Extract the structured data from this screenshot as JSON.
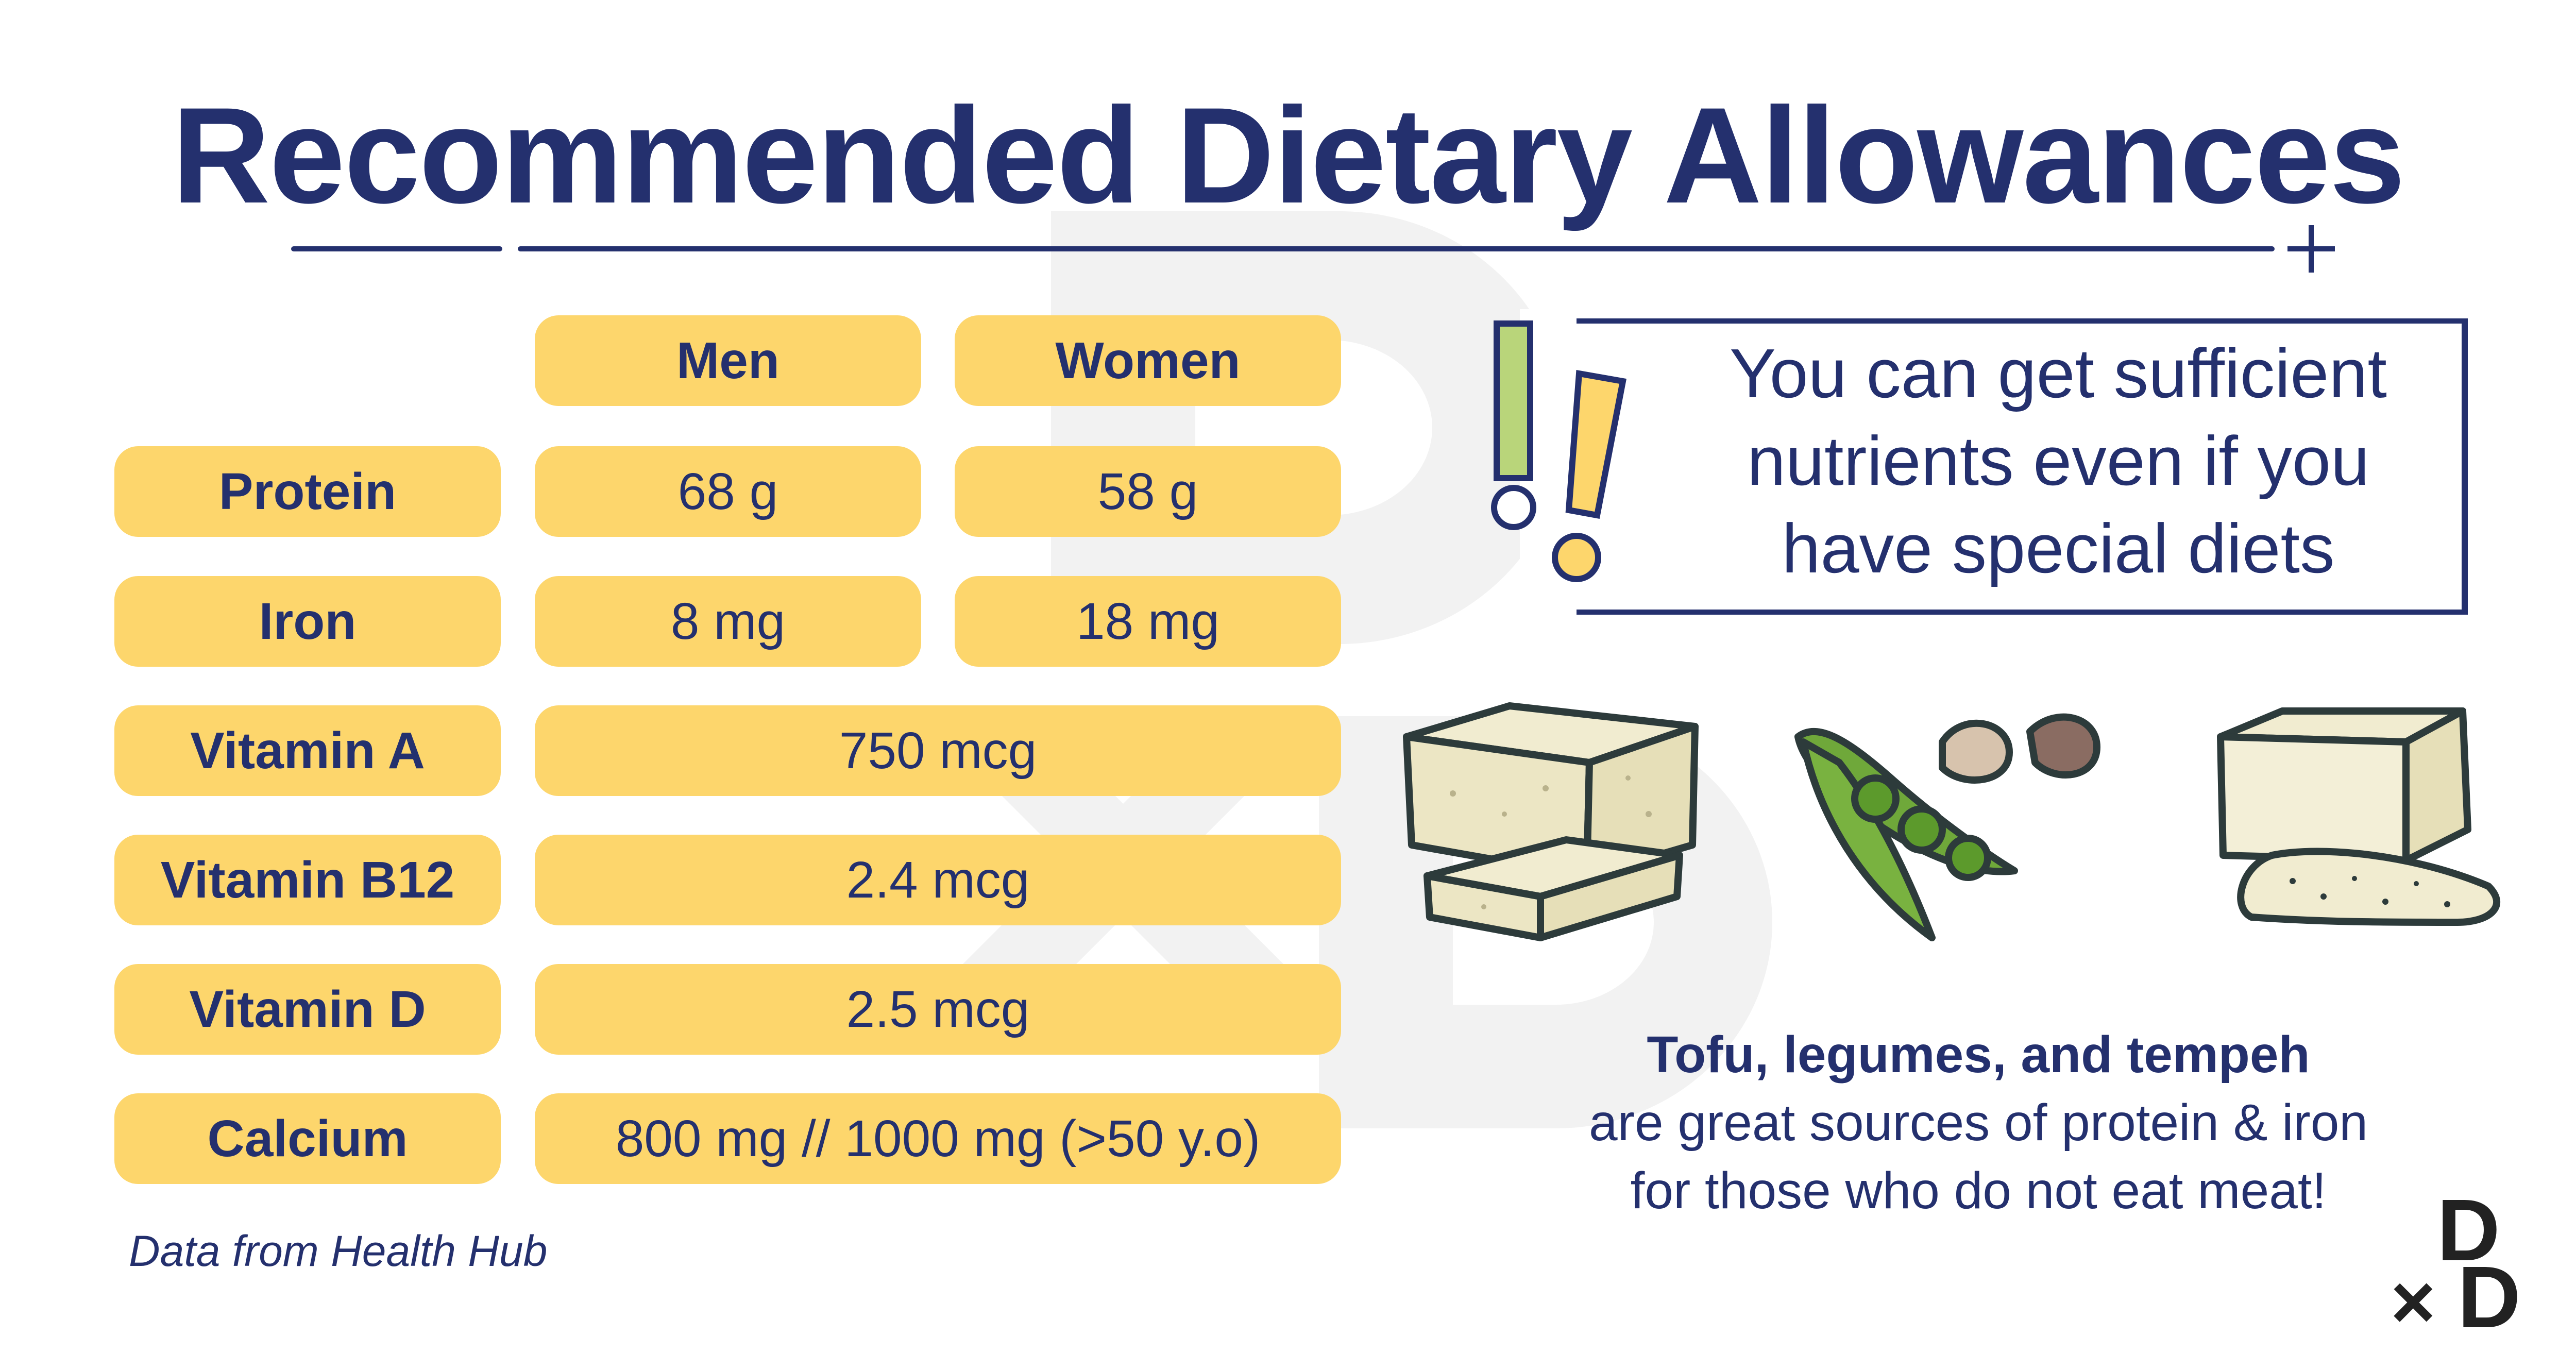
{
  "title": "Recommended Dietary Allowances",
  "table": {
    "headers": [
      "Men",
      "Women"
    ],
    "rows": [
      {
        "label": "Protein",
        "men": "68 g",
        "women": "58 g"
      },
      {
        "label": "Iron",
        "men": "8 mg",
        "women": "18 mg"
      },
      {
        "label": "Vitamin A",
        "both": "750 mcg"
      },
      {
        "label": "Vitamin B12",
        "both": "2.4 mcg"
      },
      {
        "label": "Vitamin D",
        "both": "2.5 mcg"
      },
      {
        "label": "Calcium",
        "both": "800 mg // 1000 mg (>50 y.o)"
      }
    ]
  },
  "source": "Data from Health Hub",
  "callout": {
    "lines": [
      "You can get sufficient",
      "nutrients even if you",
      "have special diets"
    ]
  },
  "caption": {
    "bold": "Tofu, legumes, and tempeh",
    "lines": [
      "are great sources of protein & iron",
      "for those who do not eat meat!"
    ]
  },
  "logo": {
    "top": "D",
    "cross": "×",
    "bottom": "D"
  },
  "colors": {
    "navy": "#24306e",
    "pill_yellow": "#fdd66c",
    "tofu_cream": "#f1ecd0",
    "pea_green": "#6fa83a"
  },
  "icons": [
    "exclamation-icon",
    "tofu-icon",
    "legumes-icon",
    "tempeh-icon"
  ]
}
